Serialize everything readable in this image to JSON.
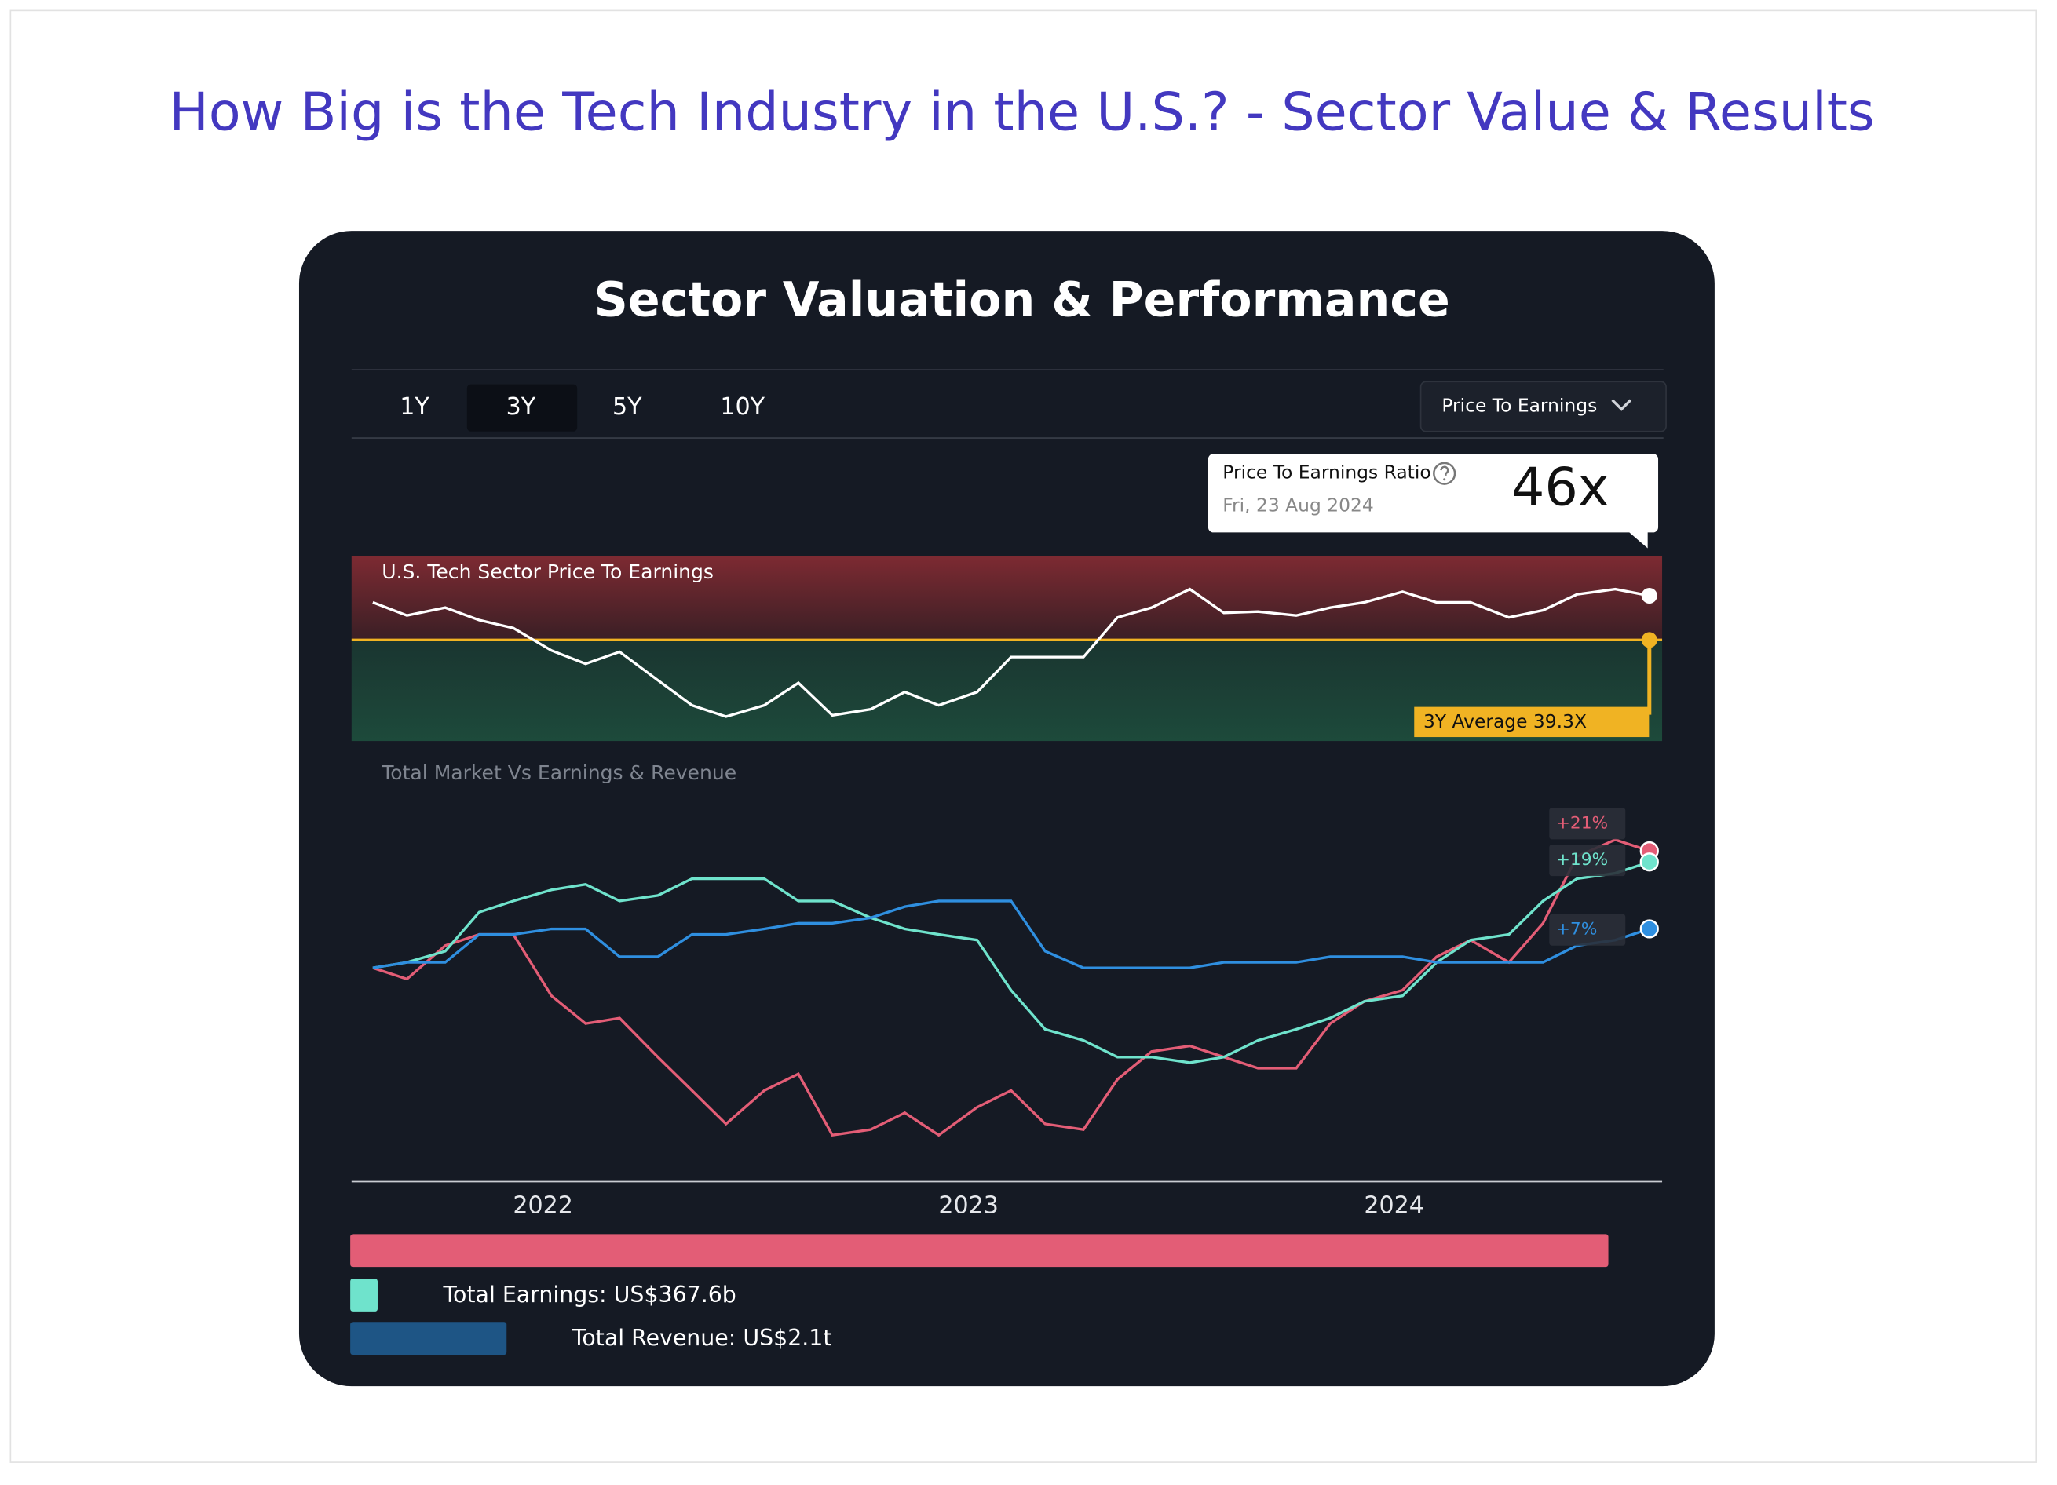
{
  "header": {
    "title": "How Big is the Tech Industry in the U.S.? - Sector Value & Results"
  },
  "card": {
    "title": "Sector Valuation & Performance"
  },
  "tabs": [
    "1Y",
    "3Y",
    "5Y",
    "10Y"
  ],
  "selected_tab": 1,
  "dropdown": {
    "label": "Price To Earnings"
  },
  "tooltip": {
    "title": "Price To Earnings Ratio",
    "date": "Fri, 23 Aug 2024"
  },
  "chart_data": [
    {
      "type": "line",
      "title": "U.S. Tech Sector Price To Earnings",
      "x": [
        2021.6,
        2021.68,
        2021.77,
        2021.85,
        2021.93,
        2022.02,
        2022.1,
        2022.18,
        2022.27,
        2022.35,
        2022.43,
        2022.52,
        2022.6,
        2022.68,
        2022.77,
        2022.85,
        2022.93,
        2023.02,
        2023.1,
        2023.18,
        2023.27,
        2023.35,
        2023.43,
        2023.52,
        2023.6,
        2023.68,
        2023.77,
        2023.85,
        2023.93,
        2024.02,
        2024.1,
        2024.18,
        2024.27,
        2024.35,
        2024.43,
        2024.52,
        2024.6
      ],
      "xlim": [
        2021.55,
        2024.63
      ],
      "ylim": [
        24,
        52
      ],
      "color": "#ffffff",
      "values": [
        45.0,
        43.0,
        44.2,
        42.3,
        41.1,
        37.7,
        35.7,
        37.5,
        33.2,
        29.4,
        27.7,
        29.4,
        32.8,
        27.9,
        28.8,
        31.4,
        29.4,
        31.4,
        36.7,
        36.7,
        36.7,
        42.7,
        44.2,
        47.0,
        43.4,
        43.6,
        43.0,
        44.2,
        45.0,
        46.6,
        45.0,
        45.0,
        42.7,
        43.8,
        46.2,
        47.0,
        46
      ],
      "value_labels": [
        null,
        null,
        null,
        null,
        null,
        null,
        null,
        null,
        null,
        null,
        null,
        null,
        null,
        null,
        null,
        null,
        null,
        null,
        null,
        null,
        null,
        null,
        null,
        null,
        null,
        null,
        null,
        null,
        null,
        null,
        null,
        null,
        null,
        null,
        null,
        null,
        "46x"
      ],
      "average": 39.3,
      "average_label": "3Y Average 39.3X",
      "average_color": "#f0b323"
    },
    {
      "type": "line",
      "title": "Total Market Vs Earnings & Revenue",
      "x": [
        2021.6,
        2021.68,
        2021.77,
        2021.85,
        2021.93,
        2022.02,
        2022.1,
        2022.18,
        2022.27,
        2022.35,
        2022.43,
        2022.52,
        2022.6,
        2022.68,
        2022.77,
        2022.85,
        2022.93,
        2023.02,
        2023.1,
        2023.18,
        2023.27,
        2023.35,
        2023.43,
        2023.52,
        2023.6,
        2023.68,
        2023.77,
        2023.85,
        2023.93,
        2024.02,
        2024.1,
        2024.18,
        2024.27,
        2024.35,
        2024.43,
        2024.52,
        2024.6
      ],
      "xlim": [
        2021.55,
        2024.63
      ],
      "xticks": [
        2022,
        2023,
        2024
      ],
      "ylim": [
        -38,
        32
      ],
      "series": [
        {
          "color": "#e35d76",
          "values": [
            0,
            -2,
            4,
            6,
            6,
            -5,
            -10,
            -9,
            -16,
            -22,
            -28,
            -22,
            -19,
            -30,
            -29,
            -26,
            -30,
            -25,
            -22,
            -28,
            -29,
            -20,
            -15,
            -14,
            -16,
            -18,
            -18,
            -10,
            -6,
            -4,
            2,
            5,
            1,
            8,
            20,
            23,
            21
          ],
          "value_labels": [
            null,
            null,
            null,
            null,
            null,
            null,
            null,
            null,
            null,
            null,
            null,
            null,
            null,
            null,
            null,
            null,
            null,
            null,
            null,
            null,
            null,
            null,
            null,
            null,
            null,
            null,
            null,
            null,
            null,
            null,
            null,
            null,
            null,
            null,
            null,
            null,
            "+21%"
          ]
        },
        {
          "color": "#6fe3cc",
          "values": [
            0,
            1,
            3,
            10,
            12,
            14,
            15,
            12,
            13,
            16,
            16,
            16,
            12,
            12,
            9,
            7,
            6,
            5,
            -4,
            -11,
            -13,
            -16,
            -16,
            -17,
            -16,
            -13,
            -11,
            -9,
            -6,
            -5,
            1,
            5,
            6,
            12,
            16,
            17,
            19
          ],
          "value_labels": [
            null,
            null,
            null,
            null,
            null,
            null,
            null,
            null,
            null,
            null,
            null,
            null,
            null,
            null,
            null,
            null,
            null,
            null,
            null,
            null,
            null,
            null,
            null,
            null,
            null,
            null,
            null,
            null,
            null,
            null,
            null,
            null,
            null,
            null,
            null,
            null,
            "+19%"
          ]
        },
        {
          "color": "#2f8fe0",
          "values": [
            0,
            1,
            1,
            6,
            6,
            7,
            7,
            2,
            2,
            6,
            6,
            7,
            8,
            8,
            9,
            11,
            12,
            12,
            12,
            3,
            0,
            0,
            0,
            0,
            1,
            1,
            1,
            2,
            2,
            2,
            1,
            1,
            1,
            1,
            4,
            5,
            7
          ],
          "value_labels": [
            null,
            null,
            null,
            null,
            null,
            null,
            null,
            null,
            null,
            null,
            null,
            null,
            null,
            null,
            null,
            null,
            null,
            null,
            null,
            null,
            null,
            null,
            null,
            null,
            null,
            null,
            null,
            null,
            null,
            null,
            null,
            null,
            null,
            null,
            null,
            null,
            "+7%"
          ]
        }
      ]
    }
  ],
  "summary_bars": [
    {
      "color": "#e35d76",
      "value": 16900000000000
    },
    {
      "color": "#6fe3cc",
      "value": 367600000000,
      "label": "Total Earnings: US$367.6b"
    },
    {
      "color": "#1e5585",
      "value": 2100000000000,
      "label": "Total Revenue: US$2.1t"
    }
  ]
}
